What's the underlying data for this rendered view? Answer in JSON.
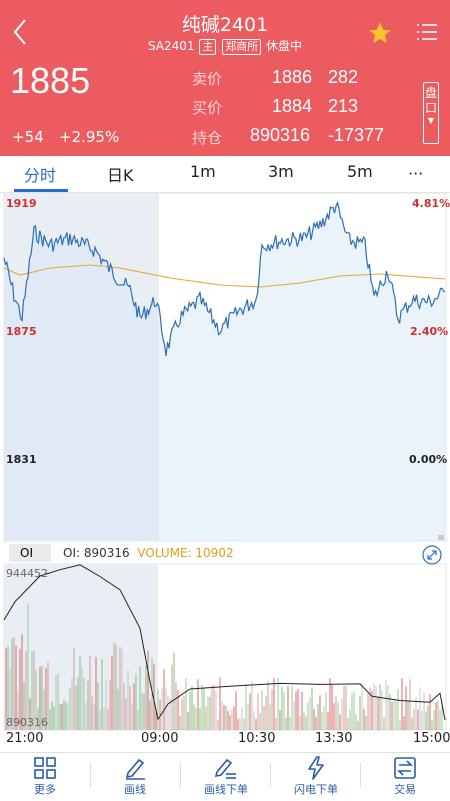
{
  "header": {
    "title": "纯碱2401",
    "contract_code": "SA2401",
    "tag_main": "主",
    "tag_exchange": "郑商所",
    "status": "休盘中",
    "last_price": "1885",
    "change": "+54",
    "change_pct": "+2.95%",
    "quotes": [
      {
        "label": "卖价",
        "value1": "1886",
        "value2": "282"
      },
      {
        "label": "买价",
        "value1": "1884",
        "value2": "213"
      },
      {
        "label": "持仓",
        "value1": "890316",
        "value2": "-17377"
      }
    ],
    "pankou_label": "盘口"
  },
  "tabs": [
    {
      "label": "分时",
      "active": true
    },
    {
      "label": "日K"
    },
    {
      "label": "1m"
    },
    {
      "label": "3m"
    },
    {
      "label": "5m"
    },
    {
      "label": "···"
    }
  ],
  "price_axis": {
    "high": "1919",
    "mid": "1875",
    "low": "1831",
    "high_pct": "4.81%",
    "mid_pct": "2.40%",
    "low_pct": "0.00%"
  },
  "oi_panel": {
    "tag": "OI",
    "oi_text": "OI: 890316",
    "volume_text": "VOLUME: 10902",
    "oi_max": "944452",
    "oi_min": "890316"
  },
  "time_axis": [
    "21:00",
    "09:00",
    "10:30",
    "13:30",
    "15:00"
  ],
  "bottom_nav": [
    {
      "label": "更多",
      "icon": "grid-icon"
    },
    {
      "label": "画线",
      "icon": "pencil-icon"
    },
    {
      "label": "画线下单",
      "icon": "pencil-order-icon"
    },
    {
      "label": "闪电下单",
      "icon": "lightning-icon"
    },
    {
      "label": "交易",
      "icon": "exchange-icon"
    }
  ],
  "colors": {
    "header_bg": "#ec5b5f",
    "accent_blue": "#2a6bd1",
    "price_line": "#2e6fb4",
    "avg_line": "#e0a93a",
    "up_red": "#d0302e",
    "star": "#f7c52a"
  }
}
